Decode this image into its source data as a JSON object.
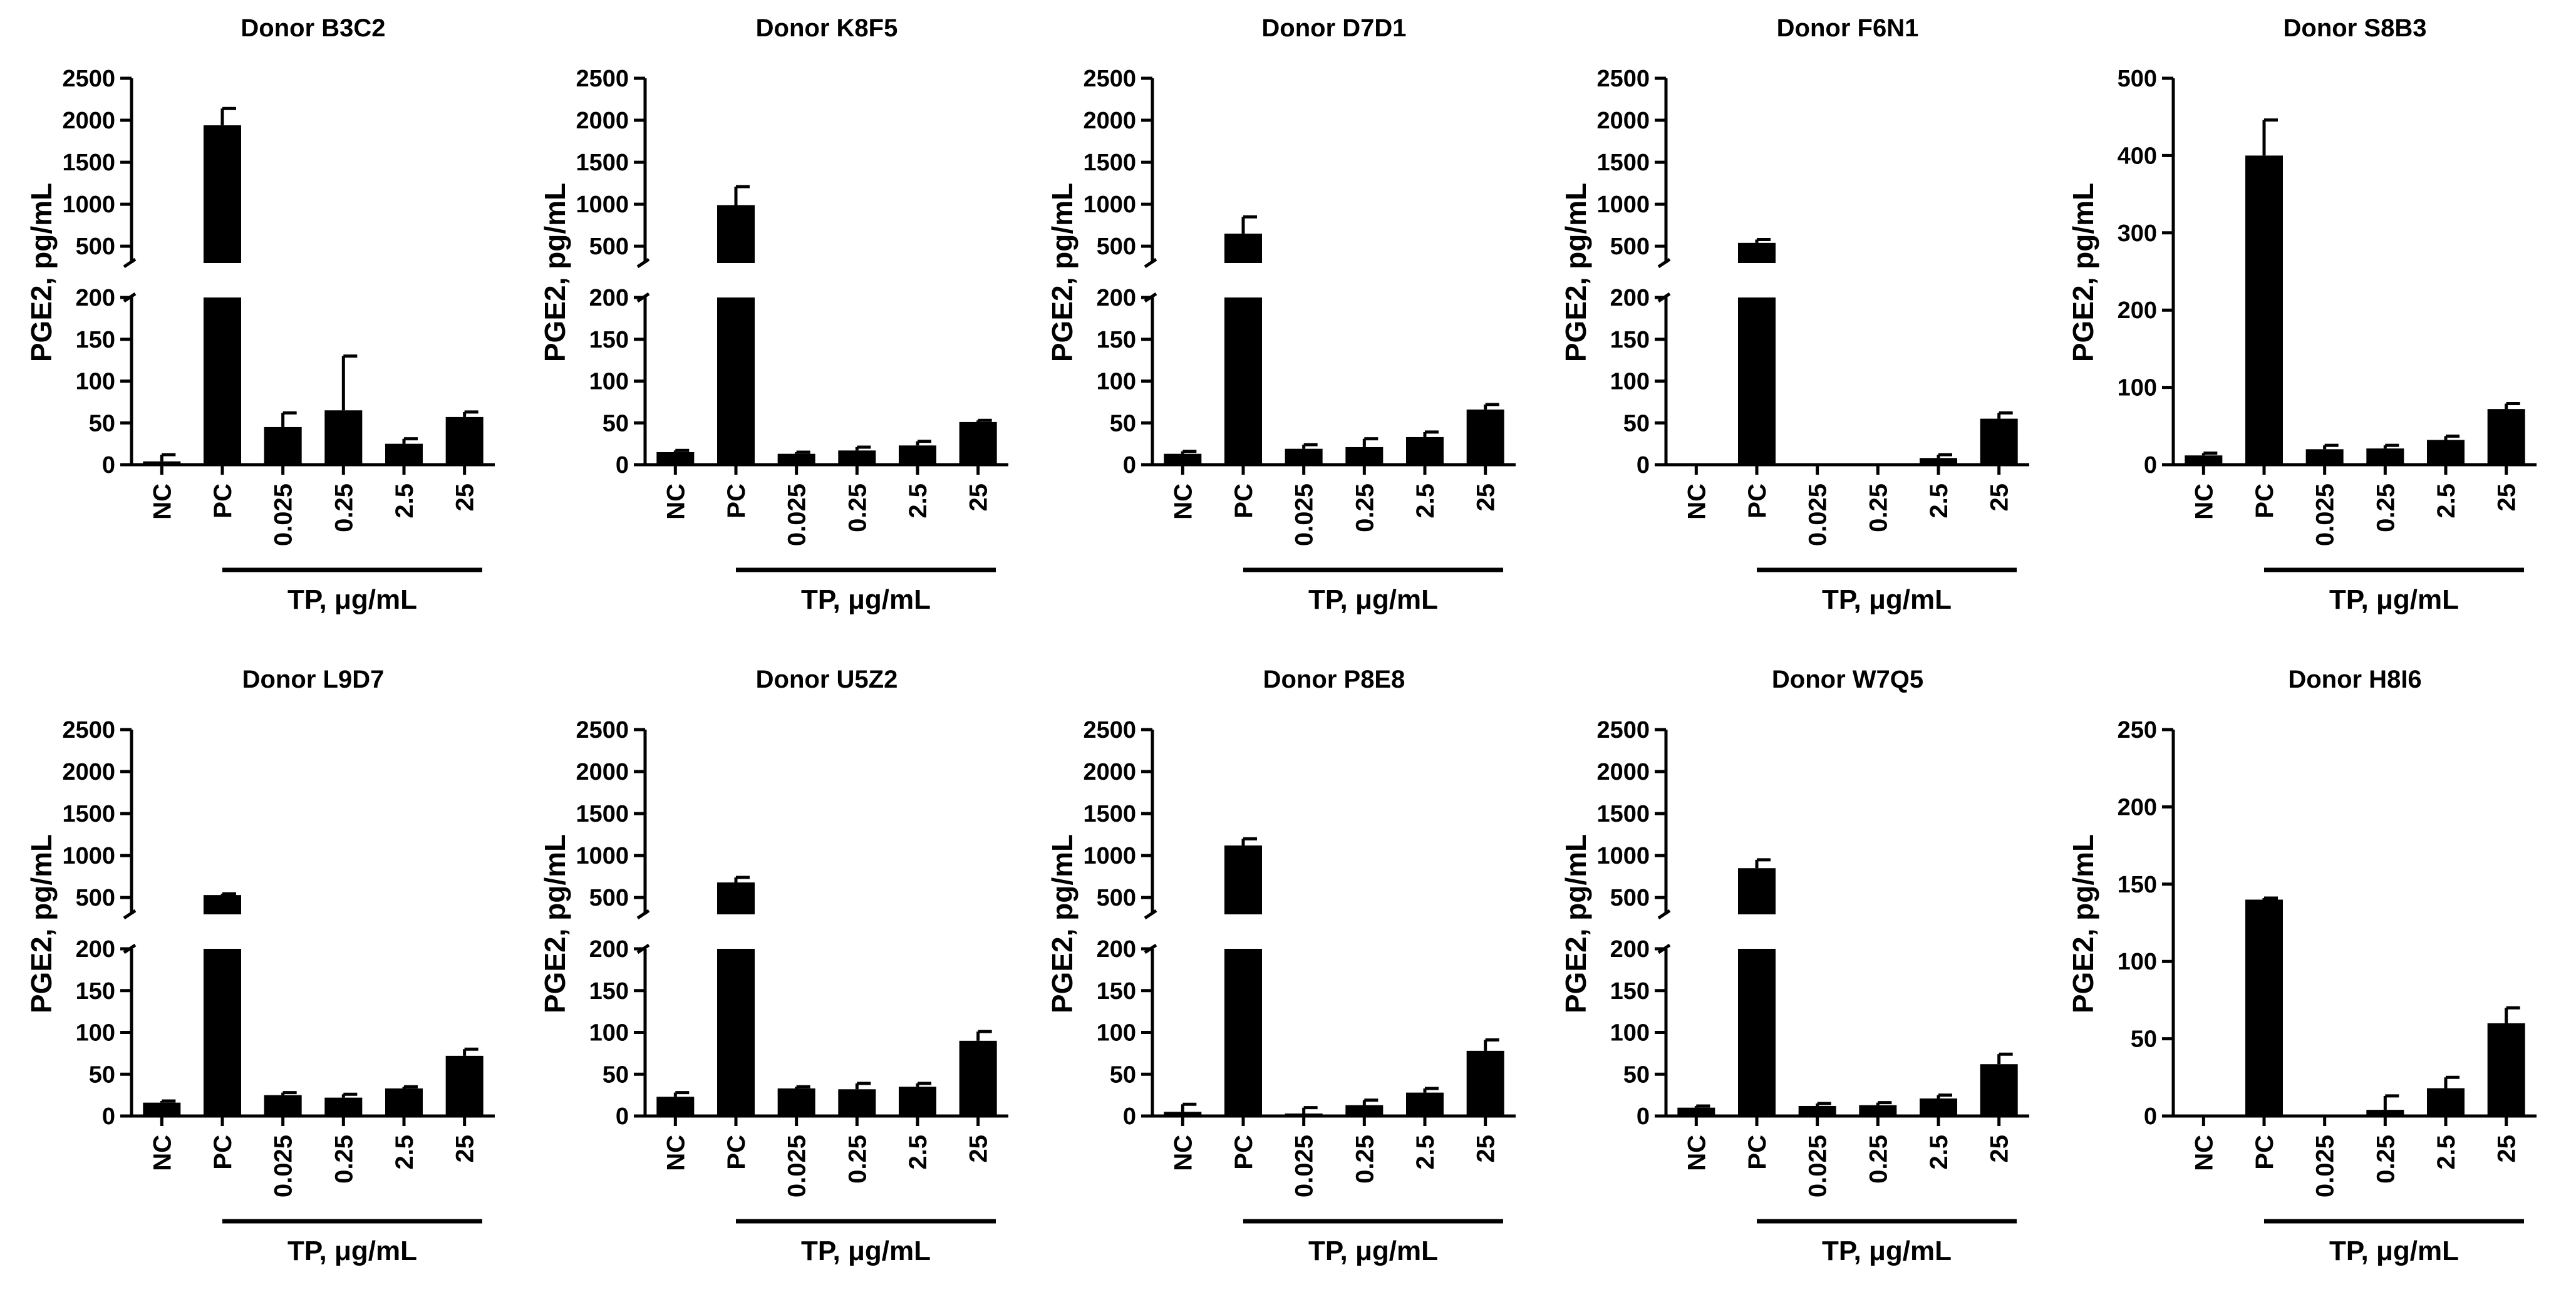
{
  "figure": {
    "unit_symbol": "μ",
    "colors": {
      "bar": "#000000",
      "axis": "#000000",
      "background": "#ffffff"
    }
  },
  "chart_data": [
    {
      "type": "bar",
      "title": "Donor B3C2",
      "ylabel": "PGE2, pg/mL",
      "group_label": "TP, μg/mL",
      "categories": [
        "NC",
        "PC",
        "0.025",
        "0.25",
        "2.5",
        "25"
      ],
      "values": [
        4,
        1940,
        45,
        65,
        25,
        57
      ],
      "errors": [
        8,
        200,
        17,
        65,
        6,
        6
      ],
      "grouped_categories": [
        "0.025",
        "0.25",
        "2.5",
        "25"
      ],
      "broken_axis": true,
      "lower_ticks": [
        "0",
        "50",
        "100",
        "150",
        "200"
      ],
      "upper_ticks": [
        "500",
        "1000",
        "1500",
        "2000",
        "2500"
      ],
      "ylim_lower": [
        0,
        200
      ],
      "ylim_upper": [
        300,
        2500
      ]
    },
    {
      "type": "bar",
      "title": "Donor K8F5",
      "ylabel": "PGE2, pg/mL",
      "group_label": "TP, μg/mL",
      "categories": [
        "NC",
        "PC",
        "0.025",
        "0.25",
        "2.5",
        "25"
      ],
      "values": [
        15,
        990,
        13,
        17,
        23,
        51
      ],
      "errors": [
        2,
        220,
        2,
        4,
        5,
        2
      ],
      "grouped_categories": [
        "0.025",
        "0.25",
        "2.5",
        "25"
      ],
      "broken_axis": true,
      "lower_ticks": [
        "0",
        "50",
        "100",
        "150",
        "200"
      ],
      "upper_ticks": [
        "500",
        "1000",
        "1500",
        "2000",
        "2500"
      ],
      "ylim_lower": [
        0,
        200
      ],
      "ylim_upper": [
        300,
        2500
      ]
    },
    {
      "type": "bar",
      "title": "Donor D7D1",
      "ylabel": "PGE2, pg/mL",
      "group_label": "TP, μg/mL",
      "categories": [
        "NC",
        "PC",
        "0.025",
        "0.25",
        "2.5",
        "25"
      ],
      "values": [
        13,
        650,
        19,
        21,
        33,
        66
      ],
      "errors": [
        3,
        200,
        5,
        10,
        6,
        6
      ],
      "grouped_categories": [
        "0.025",
        "0.25",
        "2.5",
        "25"
      ],
      "broken_axis": true,
      "lower_ticks": [
        "0",
        "50",
        "100",
        "150",
        "200"
      ],
      "upper_ticks": [
        "500",
        "1000",
        "1500",
        "2000",
        "2500"
      ],
      "ylim_lower": [
        0,
        200
      ],
      "ylim_upper": [
        300,
        2500
      ]
    },
    {
      "type": "bar",
      "title": "Donor F6N1",
      "ylabel": "PGE2, pg/mL",
      "group_label": "TP, μg/mL",
      "categories": [
        "NC",
        "PC",
        "0.025",
        "0.25",
        "2.5",
        "25"
      ],
      "values": [
        0,
        540,
        0,
        0,
        8,
        55
      ],
      "errors": [
        0,
        40,
        0,
        0,
        4,
        7
      ],
      "grouped_categories": [
        "0.025",
        "0.25",
        "2.5",
        "25"
      ],
      "broken_axis": true,
      "lower_ticks": [
        "0",
        "50",
        "100",
        "150",
        "200"
      ],
      "upper_ticks": [
        "500",
        "1000",
        "1500",
        "2000",
        "2500"
      ],
      "ylim_lower": [
        0,
        200
      ],
      "ylim_upper": [
        300,
        2500
      ]
    },
    {
      "type": "bar",
      "title": "Donor S8B3",
      "ylabel": "PGE2, pg/mL",
      "group_label": "TP, μg/mL",
      "categories": [
        "NC",
        "PC",
        "0.025",
        "0.25",
        "2.5",
        "25"
      ],
      "values": [
        12,
        400,
        20,
        21,
        32,
        72
      ],
      "errors": [
        3,
        46,
        5,
        4,
        5,
        7
      ],
      "grouped_categories": [
        "0.025",
        "0.25",
        "2.5",
        "25"
      ],
      "broken_axis": false,
      "ticks": [
        "0",
        "100",
        "200",
        "300",
        "400",
        "500"
      ],
      "ylim": [
        0,
        500
      ]
    },
    {
      "type": "bar",
      "title": "Donor L9D7",
      "ylabel": "PGE2, pg/mL",
      "group_label": "TP, μg/mL",
      "categories": [
        "NC",
        "PC",
        "0.025",
        "0.25",
        "2.5",
        "25"
      ],
      "values": [
        16,
        530,
        25,
        22,
        33,
        72
      ],
      "errors": [
        2,
        15,
        3,
        4,
        2,
        8
      ],
      "grouped_categories": [
        "0.025",
        "0.25",
        "2.5",
        "25"
      ],
      "broken_axis": true,
      "lower_ticks": [
        "0",
        "50",
        "100",
        "150",
        "200"
      ],
      "upper_ticks": [
        "500",
        "1000",
        "1500",
        "2000",
        "2500"
      ],
      "ylim_lower": [
        0,
        200
      ],
      "ylim_upper": [
        300,
        2500
      ]
    },
    {
      "type": "bar",
      "title": "Donor U5Z2",
      "ylabel": "PGE2, pg/mL",
      "group_label": "TP, μg/mL",
      "categories": [
        "NC",
        "PC",
        "0.025",
        "0.25",
        "2.5",
        "25"
      ],
      "values": [
        23,
        680,
        33,
        32,
        35,
        90
      ],
      "errors": [
        5,
        60,
        2,
        7,
        4,
        11
      ],
      "grouped_categories": [
        "0.025",
        "0.25",
        "2.5",
        "25"
      ],
      "broken_axis": true,
      "lower_ticks": [
        "0",
        "50",
        "100",
        "150",
        "200"
      ],
      "upper_ticks": [
        "500",
        "1000",
        "1500",
        "2000",
        "2500"
      ],
      "ylim_lower": [
        0,
        200
      ],
      "ylim_upper": [
        300,
        2500
      ]
    },
    {
      "type": "bar",
      "title": "Donor P8E8",
      "ylabel": "PGE2, pg/mL",
      "group_label": "TP, μg/mL",
      "categories": [
        "NC",
        "PC",
        "0.025",
        "0.25",
        "2.5",
        "25"
      ],
      "values": [
        5,
        1120,
        3,
        13,
        28,
        78
      ],
      "errors": [
        9,
        80,
        7,
        6,
        5,
        13
      ],
      "grouped_categories": [
        "0.025",
        "0.25",
        "2.5",
        "25"
      ],
      "broken_axis": true,
      "lower_ticks": [
        "0",
        "50",
        "100",
        "150",
        "200"
      ],
      "upper_ticks": [
        "500",
        "1000",
        "1500",
        "2000",
        "2500"
      ],
      "ylim_lower": [
        0,
        200
      ],
      "ylim_upper": [
        300,
        2500
      ]
    },
    {
      "type": "bar",
      "title": "Donor W7Q5",
      "ylabel": "PGE2, pg/mL",
      "group_label": "TP, μg/mL",
      "categories": [
        "NC",
        "PC",
        "0.025",
        "0.25",
        "2.5",
        "25"
      ],
      "values": [
        10,
        850,
        12,
        13,
        21,
        62
      ],
      "errors": [
        2,
        100,
        3,
        3,
        4,
        12
      ],
      "grouped_categories": [
        "0.025",
        "0.25",
        "2.5",
        "25"
      ],
      "broken_axis": true,
      "lower_ticks": [
        "0",
        "50",
        "100",
        "150",
        "200"
      ],
      "upper_ticks": [
        "500",
        "1000",
        "1500",
        "2000",
        "2500"
      ],
      "ylim_lower": [
        0,
        200
      ],
      "ylim_upper": [
        300,
        2500
      ]
    },
    {
      "type": "bar",
      "title": "Donor H8I6",
      "ylabel": "PGE2, pg/mL",
      "group_label": "TP, μg/mL",
      "categories": [
        "NC",
        "PC",
        "0.025",
        "0.25",
        "2.5",
        "25"
      ],
      "values": [
        0,
        140,
        0,
        4,
        18,
        60
      ],
      "errors": [
        0,
        1,
        0,
        9,
        7,
        10
      ],
      "grouped_categories": [
        "0.025",
        "0.25",
        "2.5",
        "25"
      ],
      "broken_axis": false,
      "ticks": [
        "0",
        "50",
        "100",
        "150",
        "200",
        "250"
      ],
      "ylim": [
        0,
        250
      ]
    }
  ]
}
